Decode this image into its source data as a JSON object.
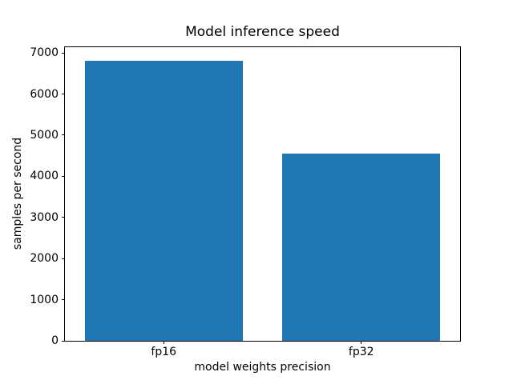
{
  "chart_data": {
    "type": "bar",
    "title": "Model inference speed",
    "xlabel": "model weights precision",
    "ylabel": "samples per second",
    "categories": [
      "fp16",
      "fp32"
    ],
    "values": [
      6800,
      4550
    ],
    "ylim": [
      0,
      7140
    ],
    "yticks": [
      0,
      1000,
      2000,
      3000,
      4000,
      5000,
      6000,
      7000
    ],
    "bar_color": "#1f77b4",
    "bar_width_fraction": 0.8,
    "background_color": "#ffffff",
    "spine_color": "#000000",
    "grid": false,
    "legend": "none"
  }
}
